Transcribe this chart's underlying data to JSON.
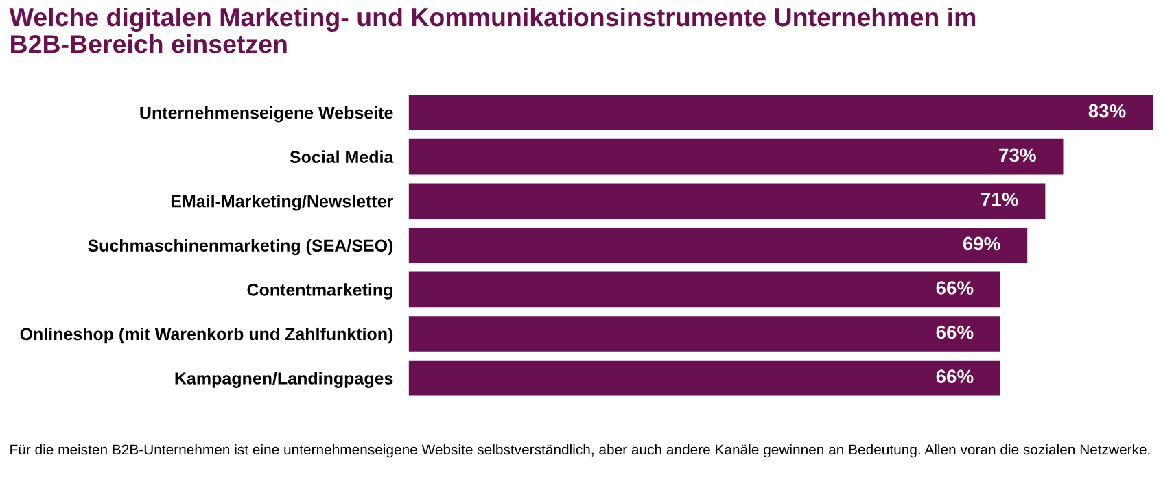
{
  "chart_data": {
    "type": "bar",
    "orientation": "horizontal",
    "title": "Welche digitalen Marketing- und Kommunikationsinstrumente Unternehmen im\nB2B-Bereich einsetzen",
    "categories": [
      "Unternehmenseigene Webseite",
      "Social Media",
      "EMail-Marketing/Newsletter",
      "Suchmaschinenmarketing (SEA/SEO)",
      "Contentmarketing",
      "Onlineshop (mit Warenkorb und Zahlfunktion)",
      "Kampagnen/Landingpages"
    ],
    "values": [
      83,
      73,
      71,
      69,
      66,
      66,
      66
    ],
    "value_labels": [
      "83%",
      "73%",
      "71%",
      "69%",
      "66%",
      "66%",
      "66%"
    ],
    "color": "#6a0f4f",
    "tick_labels": "y",
    "grid": false,
    "legend": false,
    "annotations": [
      "Für die meisten B2B-Unternehmen ist eine unternehmenseigene Website selbstverständlich, aber auch andere Kanäle gewinnen an Bedeutung. Allen voran die sozialen Netzwerke."
    ]
  }
}
